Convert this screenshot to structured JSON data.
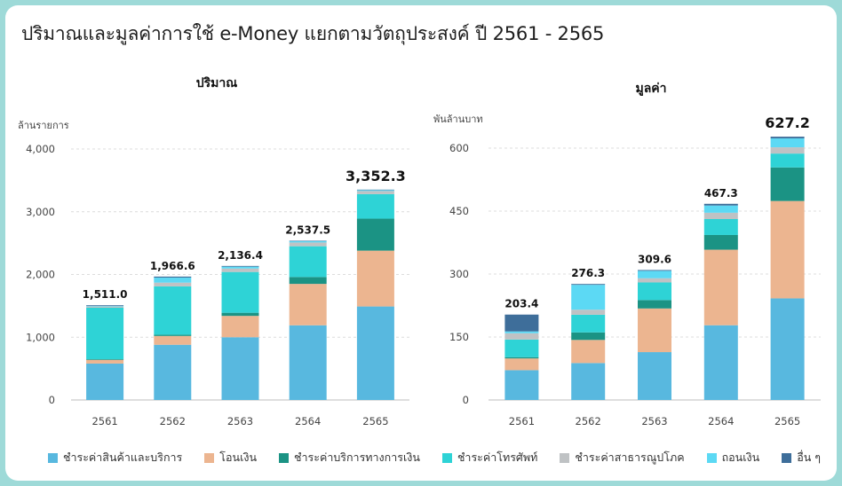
{
  "page": {
    "title": "ปริมาณและมูลค่าการใช้ e-Money แยกตามวัตถุประสงค์ ปี 2561 - 2565"
  },
  "series_meta": [
    {
      "name": "ชำระค่าสินค้าและบริการ",
      "color": "#58b8df"
    },
    {
      "name": "โอนเงิน",
      "color": "#ecb590"
    },
    {
      "name": "ชำระค่าบริการทางการเงิน",
      "color": "#1b9384"
    },
    {
      "name": "ชำระค่าโทรศัพท์",
      "color": "#2ed3d6"
    },
    {
      "name": "ชำระค่าสาธารณูปโภค",
      "color": "#bfc2c4"
    },
    {
      "name": "ถอนเงิน",
      "color": "#5cd9f4"
    },
    {
      "name": "อื่น ๆ",
      "color": "#3e6e9a"
    }
  ],
  "chart_data": [
    {
      "type": "bar",
      "stacked": true,
      "title": "ปริมาณ",
      "ylabel": "ล้านรายการ",
      "xlabel": "",
      "ylim": [
        0,
        4000
      ],
      "yticks": [
        0,
        1000,
        2000,
        3000,
        4000
      ],
      "ytick_labels": [
        "0",
        "1,000",
        "2,000",
        "3,000",
        "4,000"
      ],
      "categories": [
        "2561",
        "2562",
        "2563",
        "2564",
        "2565"
      ],
      "totals": [
        1511.0,
        1966.6,
        2136.4,
        2537.5,
        3352.3
      ],
      "total_labels": [
        "1,511.0",
        "1,966.6",
        "2,136.4",
        "2,537.5",
        "3,352.3"
      ],
      "series": [
        {
          "name": "ชำระค่าสินค้าและบริการ",
          "values": [
            580,
            880,
            1000,
            1190,
            1490
          ]
        },
        {
          "name": "โอนเงิน",
          "values": [
            60,
            140,
            340,
            660,
            890
          ]
        },
        {
          "name": "ชำระค่าบริการทางการเงิน",
          "values": [
            10,
            20,
            50,
            110,
            510
          ]
        },
        {
          "name": "ชำระค่าโทรศัพท์",
          "values": [
            820,
            770,
            650,
            490,
            390
          ]
        },
        {
          "name": "ชำระค่าสาธารณูปโภค",
          "values": [
            20,
            60,
            55,
            60,
            50
          ]
        },
        {
          "name": "ถอนเงิน",
          "values": [
            10,
            80,
            30,
            20,
            15
          ]
        },
        {
          "name": "อื่น ๆ",
          "values": [
            11,
            16.6,
            11.4,
            7.5,
            7.3
          ]
        }
      ]
    },
    {
      "type": "bar",
      "stacked": true,
      "title": "มูลค่า",
      "ylabel": "พันล้านบาท",
      "xlabel": "",
      "ylim": [
        0,
        600
      ],
      "yticks": [
        0,
        150,
        300,
        450,
        600
      ],
      "ytick_labels": [
        "0",
        "150",
        "300",
        "450",
        "600"
      ],
      "categories": [
        "2561",
        "2562",
        "2563",
        "2564",
        "2565"
      ],
      "totals": [
        203.4,
        276.3,
        309.6,
        467.3,
        627.2
      ],
      "total_labels": [
        "203.4",
        "276.3",
        "309.6",
        "467.3",
        "627.2"
      ],
      "series": [
        {
          "name": "ชำระค่าสินค้าและบริการ",
          "values": [
            71,
            88,
            114,
            178,
            242
          ]
        },
        {
          "name": "โอนเงิน",
          "values": [
            28,
            55,
            104,
            180,
            232
          ]
        },
        {
          "name": "ชำระค่าบริการทางการเงิน",
          "values": [
            3,
            18,
            20,
            35,
            80
          ]
        },
        {
          "name": "ชำระค่าโทรศัพท์",
          "values": [
            42,
            42,
            42,
            38,
            33
          ]
        },
        {
          "name": "ชำระค่าสาธารณูปโภค",
          "values": [
            15,
            12,
            10,
            15,
            15
          ]
        },
        {
          "name": "ถอนเงิน",
          "values": [
            4.4,
            59.3,
            17.6,
            17.3,
            21.2
          ]
        },
        {
          "name": "อื่น ๆ",
          "values": [
            40,
            2,
            2,
            4,
            4
          ]
        }
      ]
    }
  ]
}
